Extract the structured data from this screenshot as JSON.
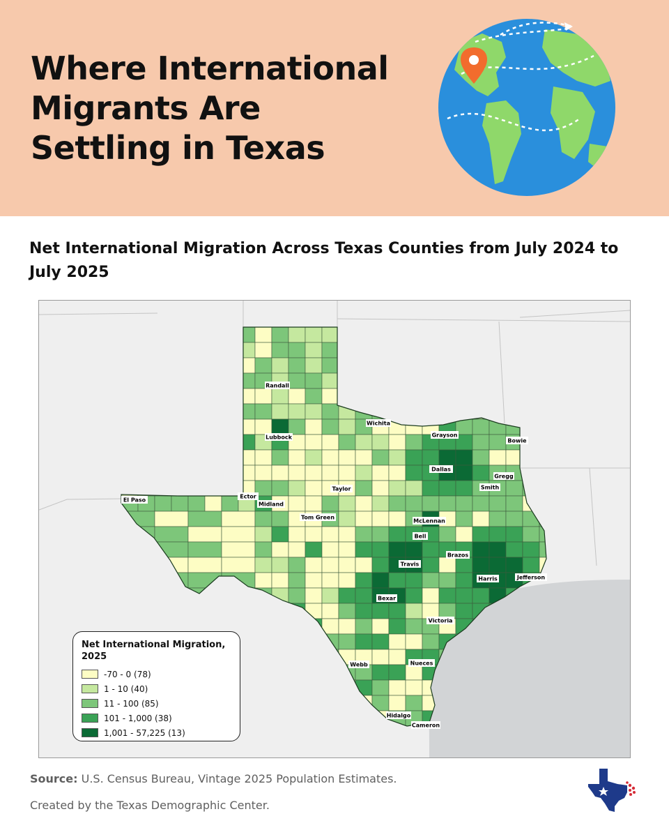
{
  "header": {
    "title_lines": [
      "Where International",
      "Migrants Are",
      "Settling in Texas"
    ],
    "background": "#f7c9ac",
    "illustration": "globe-with-location-pin-and-flight-paths-icon"
  },
  "map": {
    "title": "Net International Migration Across Texas Counties from July 2024 to July 2025",
    "colors": {
      "class1": "#fdfdc4",
      "class2": "#c5e89f",
      "class3": "#7dc67a",
      "class4": "#3aa256",
      "class5": "#0b6a35",
      "neighbor_land": "#efefef",
      "gulf_water": "#d2d4d6"
    },
    "county_labels": [
      "Randall",
      "Lubbock",
      "Wichita",
      "Grayson",
      "Bowie",
      "Dallas",
      "Gregg",
      "Smith",
      "El Paso",
      "Ector",
      "Midland",
      "Taylor",
      "Tom Green",
      "McLennan",
      "Bell",
      "Brazos",
      "Travis",
      "Harris",
      "Jefferson",
      "Bexar",
      "Victoria",
      "Webb",
      "Nueces",
      "Hidalgo",
      "Cameron"
    ]
  },
  "legend": {
    "title": "Net International Migration, 2025",
    "items": [
      {
        "label": "-70 - 0 (78)",
        "color": "#fdfdc4"
      },
      {
        "label": "1 - 10 (40)",
        "color": "#c5e89f"
      },
      {
        "label": "11 - 100 (85)",
        "color": "#7dc67a"
      },
      {
        "label": "101 - 1,000 (38)",
        "color": "#3aa256"
      },
      {
        "label": "1,001 - 57,225 (13)",
        "color": "#0b6a35"
      }
    ]
  },
  "footer": {
    "source_label": "Source:",
    "source_text": "U.S. Census Bureau, Vintage 2025 Population Estimates.",
    "credit": "Created by the Texas Demographic Center.",
    "logo": "texas-demographic-center-logo-icon"
  }
}
